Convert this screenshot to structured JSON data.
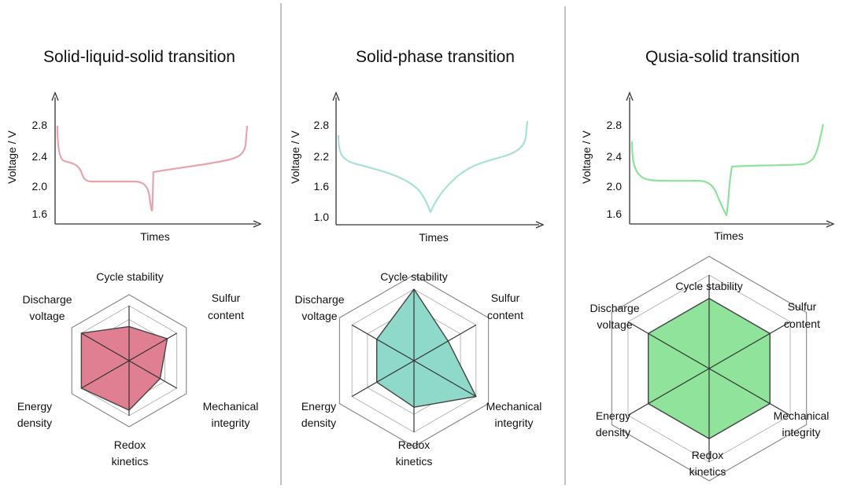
{
  "panels": [
    {
      "title": "Solid-liquid-solid transition",
      "color": "#e8a3ad",
      "fill": "#df7f91",
      "y_label": "Voltage / V",
      "x_label": "Times",
      "y_ticks": [
        "2.8",
        "2.4",
        "2.0",
        "1.6"
      ],
      "radar_labels": [
        "Cycle stability",
        "Sulfur content",
        "Mechanical integrity",
        "Redox kinetics",
        "Energy density",
        "Discharge voltage"
      ],
      "radar_values": [
        0.62,
        0.8,
        0.65,
        0.9,
        1.0,
        1.0
      ]
    },
    {
      "title": "Solid-phase transition",
      "color": "#a8e2d6",
      "fill": "#8fd9cb",
      "y_label": "Voltage / V",
      "x_label": "Times",
      "y_ticks": [
        "2.8",
        "2.2",
        "1.6",
        "1.0"
      ],
      "radar_labels": [
        "Cycle stability",
        "Sulfur content",
        "Mechanical integrity",
        "Redox kinetics",
        "Energy density",
        "Discharge voltage"
      ],
      "radar_values": [
        1.0,
        0.55,
        1.0,
        0.65,
        0.6,
        0.6
      ]
    },
    {
      "title": "Qusia-solid transition",
      "color": "#8ee39c",
      "fill": "#8fe39a",
      "y_label": "Voltage / V",
      "x_label": "Times",
      "y_ticks": [
        "2.8",
        "2.4",
        "2.0",
        "1.6"
      ],
      "radar_labels": [
        "Cycle stability",
        "Sulfur content",
        "Mechanical integrity",
        "Redox kinetics",
        "Energy density",
        "Discharge voltage"
      ],
      "radar_values": [
        0.75,
        0.75,
        0.75,
        0.75,
        0.75,
        0.75
      ]
    }
  ]
}
